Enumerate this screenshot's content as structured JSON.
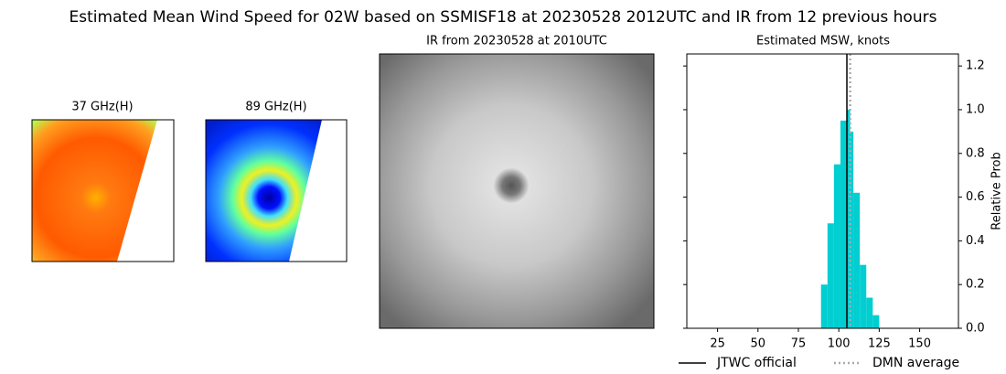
{
  "title": "Estimated Mean Wind Speed for 02W based on SSMISF18 at 20230528 2012UTC and IR from 12 previous hours",
  "panels": [
    {
      "title": "37 GHz(H)"
    },
    {
      "title": "89 GHz(H)"
    },
    {
      "title": "IR from 20230528 at 2010UTC"
    }
  ],
  "chart_data": {
    "type": "histogram",
    "title": "Estimated MSW, knots",
    "y_label": "Relative Prob",
    "bins": [
      89,
      93,
      97,
      101,
      105,
      107,
      109,
      113,
      117,
      121,
      125
    ],
    "values": [
      0.2,
      0.48,
      0.75,
      0.95,
      1.0,
      0.9,
      0.62,
      0.29,
      0.14,
      0.06
    ],
    "color": "#00ced1",
    "lines": [
      {
        "name": "JTWC official",
        "value": 105,
        "color": "#000000",
        "style": "solid"
      },
      {
        "name": "DMN average",
        "value": 107,
        "color": "#aaaaaa",
        "style": "dotted"
      }
    ],
    "xlim": [
      6,
      174
    ],
    "xticks": [
      25,
      50,
      75,
      100,
      125,
      150
    ],
    "ylim": [
      0,
      1.255
    ],
    "yticks": [
      {
        "value": 0,
        "label": "0.0"
      },
      0.2,
      0.4,
      0.6,
      0.8,
      {
        "value": 1,
        "label": "1.0"
      },
      1.2
    ]
  }
}
